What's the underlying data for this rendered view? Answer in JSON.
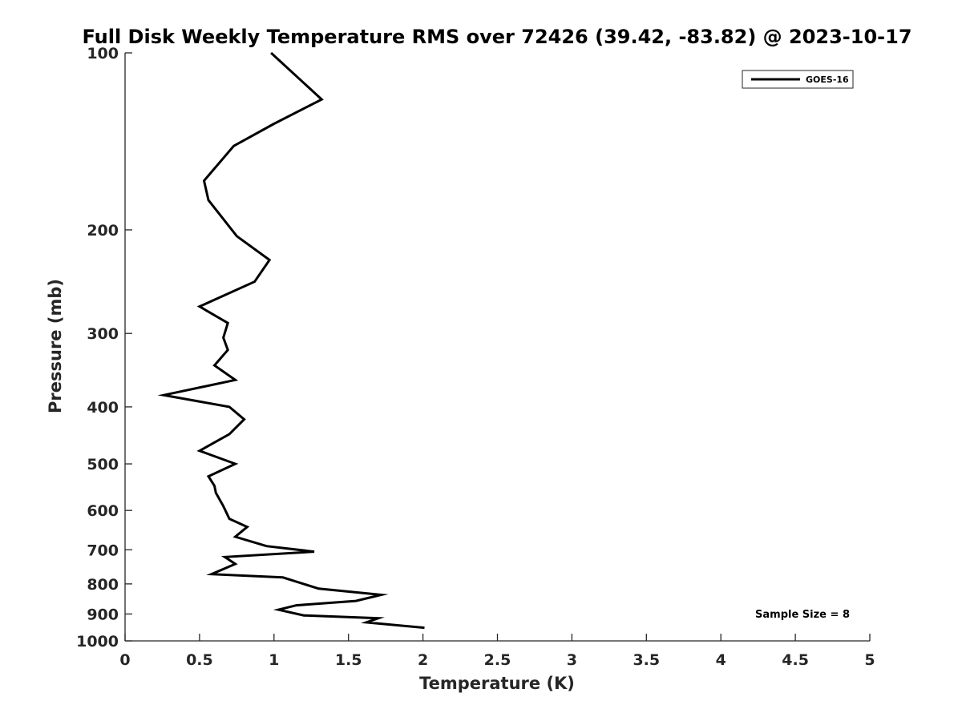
{
  "chart_data": {
    "type": "line",
    "title": "Full Disk Weekly Temperature RMS over 72426 (39.42, -83.82) @ 2023-10-17",
    "xlabel": "Temperature (K)",
    "ylabel": "Pressure (mb)",
    "xlim": [
      0,
      5
    ],
    "ylim": [
      100,
      1000
    ],
    "y_scale": "log",
    "y_reversed": true,
    "grid": false,
    "x_ticks": [
      "0",
      "0.5",
      "1",
      "1.5",
      "2",
      "2.5",
      "3",
      "3.5",
      "4",
      "4.5",
      "5"
    ],
    "y_ticks": [
      "100",
      "200",
      "300",
      "400",
      "500",
      "600",
      "700",
      "800",
      "900",
      "1000"
    ],
    "legend_position": "top-right",
    "annotation": "Sample Size = 8",
    "series": [
      {
        "name": "GOES-16",
        "color": "#000000",
        "points": [
          [
            0.98,
            100
          ],
          [
            1.32,
            120
          ],
          [
            1.0,
            132
          ],
          [
            0.73,
            144
          ],
          [
            0.53,
            165
          ],
          [
            0.56,
            178
          ],
          [
            0.75,
            205
          ],
          [
            0.97,
            225
          ],
          [
            0.87,
            245
          ],
          [
            0.5,
            270
          ],
          [
            0.69,
            288
          ],
          [
            0.66,
            305
          ],
          [
            0.69,
            320
          ],
          [
            0.6,
            340
          ],
          [
            0.74,
            360
          ],
          [
            0.26,
            382
          ],
          [
            0.7,
            400
          ],
          [
            0.8,
            420
          ],
          [
            0.7,
            445
          ],
          [
            0.5,
            475
          ],
          [
            0.74,
            500
          ],
          [
            0.56,
            525
          ],
          [
            0.6,
            545
          ],
          [
            0.61,
            560
          ],
          [
            0.66,
            590
          ],
          [
            0.7,
            620
          ],
          [
            0.82,
            640
          ],
          [
            0.74,
            665
          ],
          [
            0.95,
            690
          ],
          [
            1.27,
            705
          ],
          [
            0.67,
            720
          ],
          [
            0.74,
            740
          ],
          [
            0.58,
            770
          ],
          [
            1.06,
            780
          ],
          [
            1.3,
            815
          ],
          [
            1.72,
            835
          ],
          [
            1.55,
            855
          ],
          [
            1.15,
            870
          ],
          [
            1.03,
            885
          ],
          [
            1.2,
            905
          ],
          [
            1.7,
            915
          ],
          [
            1.62,
            930
          ],
          [
            2.01,
            950
          ]
        ]
      }
    ]
  }
}
